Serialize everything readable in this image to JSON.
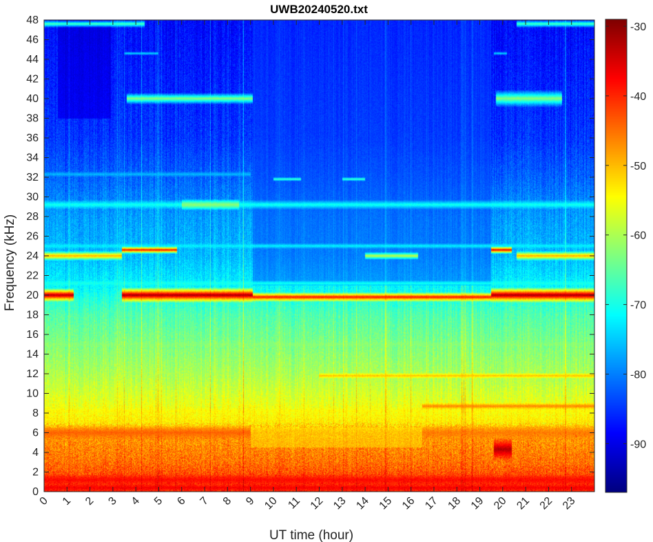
{
  "chart_data": {
    "type": "heatmap",
    "title": "UWB20240520.txt",
    "xlabel": "UT time (hour)",
    "ylabel": "Frequency (kHz)",
    "xlim": [
      0,
      24
    ],
    "ylim": [
      0,
      48
    ],
    "x_ticks": [
      0,
      1,
      2,
      3,
      4,
      5,
      6,
      7,
      8,
      9,
      10,
      11,
      12,
      13,
      14,
      15,
      16,
      17,
      18,
      19,
      20,
      21,
      22,
      23
    ],
    "x_tick_labels": [
      "0",
      "1",
      "2",
      "3",
      "4",
      "5",
      "6",
      "7",
      "8",
      "9",
      "10",
      "11",
      "12",
      "13",
      "14",
      "15",
      "16",
      "17",
      "18",
      "19",
      "20",
      "21",
      "22",
      "23"
    ],
    "y_ticks": [
      0,
      2,
      4,
      6,
      8,
      10,
      12,
      14,
      16,
      18,
      20,
      22,
      24,
      26,
      28,
      30,
      32,
      34,
      36,
      38,
      40,
      42,
      44,
      46,
      48
    ],
    "y_tick_labels": [
      "0",
      "2",
      "4",
      "6",
      "8",
      "10",
      "12",
      "14",
      "16",
      "18",
      "20",
      "22",
      "24",
      "26",
      "28",
      "30",
      "32",
      "34",
      "36",
      "38",
      "40",
      "42",
      "44",
      "46",
      "48"
    ],
    "colorbar": {
      "colormap": "jet",
      "range": [
        -97,
        -29
      ],
      "ticks": [
        -30,
        -40,
        -50,
        -60,
        -70,
        -80,
        -90
      ],
      "tick_labels": [
        "-30",
        "-40",
        "-50",
        "-60",
        "-70",
        "-80",
        "-90"
      ]
    },
    "background_profile_dB": [
      {
        "f": 0,
        "v": -40
      },
      {
        "f": 1,
        "v": -41
      },
      {
        "f": 3,
        "v": -45
      },
      {
        "f": 6,
        "v": -48
      },
      {
        "f": 7,
        "v": -53
      },
      {
        "f": 9,
        "v": -56
      },
      {
        "f": 12,
        "v": -60
      },
      {
        "f": 15,
        "v": -63
      },
      {
        "f": 18,
        "v": -66
      },
      {
        "f": 21,
        "v": -72
      },
      {
        "f": 24,
        "v": -76
      },
      {
        "f": 28,
        "v": -78
      },
      {
        "f": 32,
        "v": -82
      },
      {
        "f": 36,
        "v": -85
      },
      {
        "f": 40,
        "v": -86
      },
      {
        "f": 44,
        "v": -87
      },
      {
        "f": 48,
        "v": -88
      }
    ],
    "spectral_lines": [
      {
        "f": 20.0,
        "t0": 0,
        "t1": 1.3,
        "v": -32,
        "w": 0.7
      },
      {
        "f": 20.0,
        "t0": 3.4,
        "t1": 9.1,
        "v": -31,
        "w": 0.8
      },
      {
        "f": 19.8,
        "t0": 9.1,
        "t1": 19.5,
        "v": -38,
        "w": 0.5
      },
      {
        "f": 20.0,
        "t0": 19.5,
        "t1": 24,
        "v": -31,
        "w": 0.8
      },
      {
        "f": 24.0,
        "t0": 0,
        "t1": 3.4,
        "v": -48,
        "w": 0.5
      },
      {
        "f": 24.6,
        "t0": 3.4,
        "t1": 5.8,
        "v": -38,
        "w": 0.4
      },
      {
        "f": 24.6,
        "t0": 19.5,
        "t1": 20.4,
        "v": -36,
        "w": 0.4
      },
      {
        "f": 24.0,
        "t0": 20.6,
        "t1": 24,
        "v": -48,
        "w": 0.5
      },
      {
        "f": 24.0,
        "t0": 14.0,
        "t1": 16.3,
        "v": -58,
        "w": 0.4
      },
      {
        "f": 40.0,
        "t0": 3.6,
        "t1": 9.1,
        "v": -62,
        "w": 0.6
      },
      {
        "f": 40.0,
        "t0": 19.7,
        "t1": 22.6,
        "v": -62,
        "w": 0.9
      },
      {
        "f": 47.6,
        "t0": 0,
        "t1": 4.4,
        "v": -66,
        "w": 0.4
      },
      {
        "f": 47.6,
        "t0": 20.6,
        "t1": 24,
        "v": -66,
        "w": 0.4
      },
      {
        "f": 29.2,
        "t0": 0,
        "t1": 24,
        "v": -70,
        "w": 0.5
      },
      {
        "f": 29.2,
        "t0": 6.0,
        "t1": 8.5,
        "v": -62,
        "w": 0.6
      },
      {
        "f": 25.0,
        "t0": 0,
        "t1": 24,
        "v": -72,
        "w": 0.3
      },
      {
        "f": 21.2,
        "t0": 0,
        "t1": 24,
        "v": -70,
        "w": 0.3
      },
      {
        "f": 15.0,
        "t0": 0,
        "t1": 24,
        "v": -63,
        "w": 0.3
      },
      {
        "f": 11.8,
        "t0": 12.0,
        "t1": 24,
        "v": -50,
        "w": 0.3
      },
      {
        "f": 8.7,
        "t0": 16.5,
        "t1": 24,
        "v": -46,
        "w": 0.35
      },
      {
        "f": 8.2,
        "t0": 0,
        "t1": 24,
        "v": -55,
        "w": 0.3
      },
      {
        "f": 6.0,
        "t0": 0,
        "t1": 9.0,
        "v": -44,
        "w": 0.8
      },
      {
        "f": 6.0,
        "t0": 16.5,
        "t1": 24,
        "v": -46,
        "w": 0.8
      },
      {
        "f": 4.3,
        "t0": 19.6,
        "t1": 20.4,
        "v": -32,
        "w": 1.2
      },
      {
        "f": 1.2,
        "t0": 0,
        "t1": 24,
        "v": -38,
        "w": 0.6
      },
      {
        "f": 0.4,
        "t0": 0,
        "t1": 24,
        "v": -37,
        "w": 0.4
      },
      {
        "f": 32.3,
        "t0": 0,
        "t1": 9.0,
        "v": -76,
        "w": 0.3
      },
      {
        "f": 31.8,
        "t0": 10.0,
        "t1": 11.2,
        "v": -66,
        "w": 0.2
      },
      {
        "f": 31.8,
        "t0": 13.0,
        "t1": 14.0,
        "v": -66,
        "w": 0.2
      },
      {
        "f": 44.6,
        "t0": 3.5,
        "t1": 5.0,
        "v": -74,
        "w": 0.2
      },
      {
        "f": 44.6,
        "t0": 19.6,
        "t1": 20.2,
        "v": -74,
        "w": 0.2
      }
    ],
    "regions": [
      {
        "t0": 0.6,
        "t1": 2.9,
        "f0": 38,
        "f1": 48,
        "v": -93
      },
      {
        "t0": 9.1,
        "t1": 19.5,
        "f0": 21,
        "f1": 48,
        "v": -84
      },
      {
        "t0": 9.0,
        "t1": 16.5,
        "f0": 4.5,
        "f1": 6.5,
        "v": -53
      }
    ]
  }
}
